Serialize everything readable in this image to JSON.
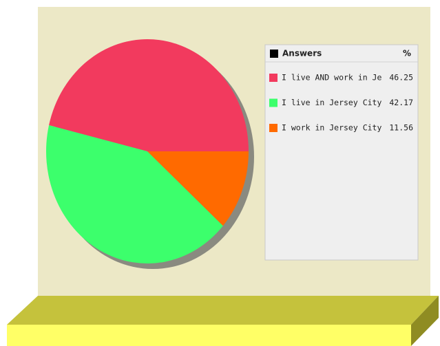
{
  "chart_data": {
    "type": "pie",
    "legend_header": "Answers",
    "value_header": "%",
    "categories": [
      "I live AND work in Jersey City",
      "I live in Jersey City",
      "I work in Jersey City"
    ],
    "values": [
      46.25,
      42.17,
      11.56
    ],
    "colors": [
      "#f23a5e",
      "#3cff6c",
      "#ff6a00"
    ],
    "legend": "right"
  }
}
